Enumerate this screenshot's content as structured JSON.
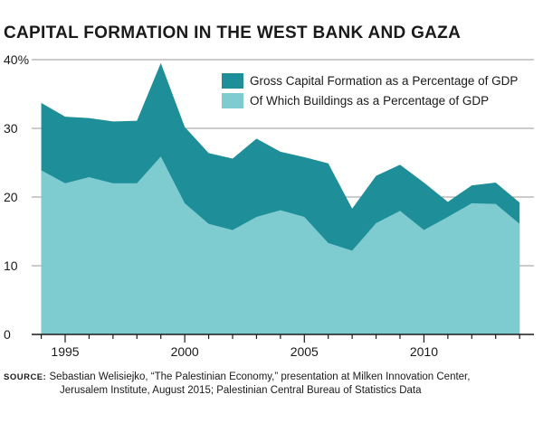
{
  "title": "CAPITAL FORMATION IN THE WEST BANK AND GAZA",
  "source": {
    "label": "SOURCE:",
    "line1": "Sebastian Welisiejko, “The Palestinian Economy,” presentation at Milken Innovation Center,",
    "line2": "Jerusalem Institute, August 2015; Palestinian Central Bureau of Statistics Data"
  },
  "chart_data": {
    "type": "area",
    "title": "CAPITAL FORMATION IN THE WEST BANK AND GAZA",
    "xlabel": "",
    "ylabel": "",
    "x": [
      1994,
      1995,
      1996,
      1997,
      1998,
      1999,
      2000,
      2001,
      2002,
      2003,
      2004,
      2005,
      2006,
      2007,
      2008,
      2009,
      2010,
      2011,
      2012,
      2013,
      2014
    ],
    "series": [
      {
        "name": "Gross Capital Formation as a Percentage of GDP",
        "color": "#1e8f98",
        "values": [
          33.7,
          31.7,
          31.5,
          31,
          31.1,
          39.5,
          30.2,
          26.4,
          25.6,
          28.5,
          26.6,
          25.8,
          24.9,
          18.3,
          23.1,
          24.7,
          22.1,
          19.3,
          21.7,
          22.1,
          19.2
        ]
      },
      {
        "name": "Of Which Buildings as a Percentage of GDP",
        "color": "#7ecbd0",
        "values": [
          23.9,
          22,
          22.9,
          22,
          22,
          25.9,
          19.1,
          16.1,
          15.2,
          17.1,
          18.1,
          17.1,
          13.3,
          12.2,
          16.2,
          18,
          15.2,
          17.1,
          19.1,
          19,
          16.1
        ]
      }
    ],
    "ylim": [
      0,
      40
    ],
    "yticks": [
      "0",
      "10",
      "20",
      "30",
      "40%"
    ],
    "xticks": [
      1995,
      2000,
      2005,
      2010
    ],
    "xlim": [
      1993.6,
      2014.6
    ],
    "grid": true,
    "legend_position": "top-right"
  }
}
